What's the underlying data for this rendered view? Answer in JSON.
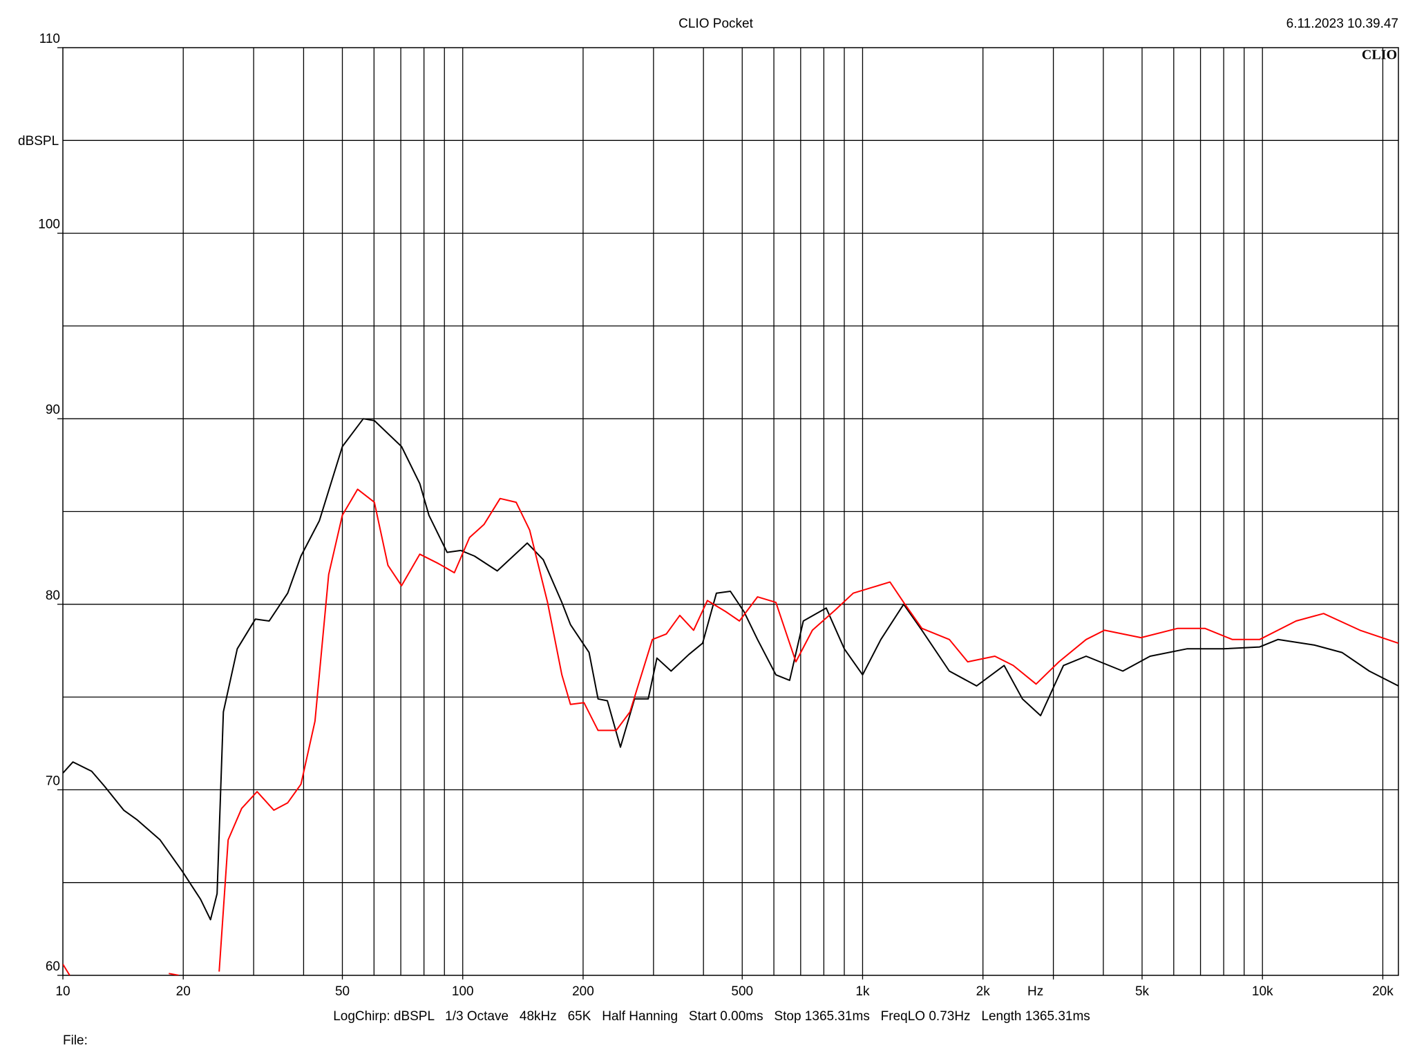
{
  "chart_data": {
    "type": "line",
    "title": "CLIO Pocket",
    "timestamp": "6.11.2023 10.39.47",
    "logo": "CLIO",
    "y_label": "dBSPL",
    "footer": "LogChirp: dBSPL   1/3 Octave   48kHz   65K   Half Hanning   Start 0.00ms   Stop 1365.31ms   FreqLO 0.73Hz   Length 1365.31ms",
    "file_label": "File:",
    "xscale": "log",
    "grid": true,
    "xlim": [
      10,
      21880
    ],
    "ylim": [
      60,
      110
    ],
    "xticks": [
      10,
      20,
      50,
      100,
      200,
      500,
      {
        "value": 1000,
        "label": "1k"
      },
      {
        "value": 2000,
        "label": "2k"
      },
      {
        "value": 3000,
        "label": "Hz"
      },
      {
        "value": 5000,
        "label": "5k"
      },
      {
        "value": 10000,
        "label": "10k"
      },
      {
        "value": 20000,
        "label": "20k"
      }
    ],
    "yticks": [
      60,
      70,
      80,
      90,
      100,
      110
    ],
    "xgrid": [
      20,
      30,
      40,
      50,
      60,
      70,
      80,
      90,
      100,
      200,
      300,
      400,
      500,
      600,
      700,
      800,
      900,
      1000,
      2000,
      3000,
      4000,
      5000,
      6000,
      7000,
      8000,
      9000,
      10000,
      20000
    ],
    "ygrid": [
      65,
      70,
      75,
      80,
      85,
      90,
      95,
      100,
      105
    ],
    "series": [
      {
        "color": "#000000",
        "x": [
          10,
          10.6,
          11.8,
          12.7,
          14.2,
          15.3,
          17.5,
          19.9,
          22.1,
          23.4,
          24.3,
          25.2,
          27.3,
          30.3,
          32.8,
          36.5,
          39.4,
          43.8,
          50,
          56.4,
          60.1,
          70.3,
          78.1,
          82.3,
          91.4,
          98.9,
          107,
          122,
          145,
          159,
          177,
          186,
          207,
          218,
          230,
          248,
          269,
          291,
          306,
          332,
          368,
          398,
          431,
          467,
          505,
          546,
          607,
          657,
          711,
          811,
          900,
          1000,
          1111,
          1267,
          1407,
          1648,
          1928,
          2259,
          2510,
          2787,
          3179,
          3623,
          4475,
          5237,
          6471,
          7980,
          9840,
          10930,
          13490,
          15810,
          18500,
          21880
        ],
        "values": [
          70.9,
          71.5,
          71,
          70.2,
          68.9,
          68.4,
          67.3,
          65.6,
          64.1,
          63.0,
          64.4,
          74.2,
          77.6,
          79.2,
          79.1,
          80.6,
          82.6,
          84.5,
          88.5,
          90.0,
          89.9,
          88.5,
          86.5,
          84.8,
          82.8,
          82.9,
          82.6,
          81.8,
          83.3,
          82.4,
          80.1,
          78.9,
          77.4,
          74.9,
          74.8,
          72.3,
          74.9,
          74.9,
          77.1,
          76.4,
          77.3,
          77.9,
          80.6,
          80.7,
          79.6,
          78.1,
          76.2,
          75.9,
          79.1,
          79.8,
          77.6,
          76.2,
          78.1,
          80.0,
          78.6,
          76.4,
          75.6,
          76.7,
          74.9,
          74.0,
          76.7,
          77.2,
          76.4,
          77.2,
          77.6,
          77.6,
          77.7,
          78.1,
          77.8,
          77.4,
          76.4,
          75.6
        ]
      },
      {
        "color": "#ff0000",
        "x": [
          10,
          10.4,
          14,
          18.4,
          19.5,
          22,
          24.6,
          25.9,
          28.0,
          30.6,
          33.7,
          36.5,
          39.4,
          42.7,
          46.2,
          50,
          54.6,
          60.1,
          65,
          70.3,
          78.1,
          86.8,
          95.3,
          104,
          113,
          124,
          136,
          147,
          163,
          177,
          186,
          201,
          218,
          242,
          262,
          298,
          323,
          349,
          378,
          409,
          455,
          492,
          546,
          607,
          681,
          749,
          855,
          948,
          1054,
          1171,
          1267,
          1407,
          1648,
          1832,
          2142,
          2381,
          2716,
          3097,
          3623,
          4027,
          4969,
          6138,
          7178,
          8410,
          9840,
          12140,
          14220,
          17540,
          21880
        ],
        "values": [
          60.6,
          60.0,
          null,
          60.1,
          60.0,
          null,
          60.2,
          67.3,
          69.0,
          69.9,
          68.9,
          69.3,
          70.3,
          73.7,
          81.6,
          84.8,
          86.2,
          85.5,
          82.1,
          81.0,
          82.7,
          82.2,
          81.7,
          83.6,
          84.3,
          85.7,
          85.5,
          84.0,
          80.1,
          76.2,
          74.6,
          74.7,
          73.2,
          73.2,
          74.2,
          78.1,
          78.4,
          79.4,
          78.6,
          80.2,
          79.6,
          79.1,
          80.4,
          80.1,
          76.9,
          78.6,
          79.7,
          80.6,
          80.9,
          81.2,
          80.1,
          78.7,
          78.1,
          76.9,
          77.2,
          76.7,
          75.7,
          76.9,
          78.1,
          78.6,
          78.2,
          78.7,
          78.7,
          78.1,
          78.1,
          79.1,
          79.5,
          78.6,
          77.9
        ]
      }
    ]
  }
}
